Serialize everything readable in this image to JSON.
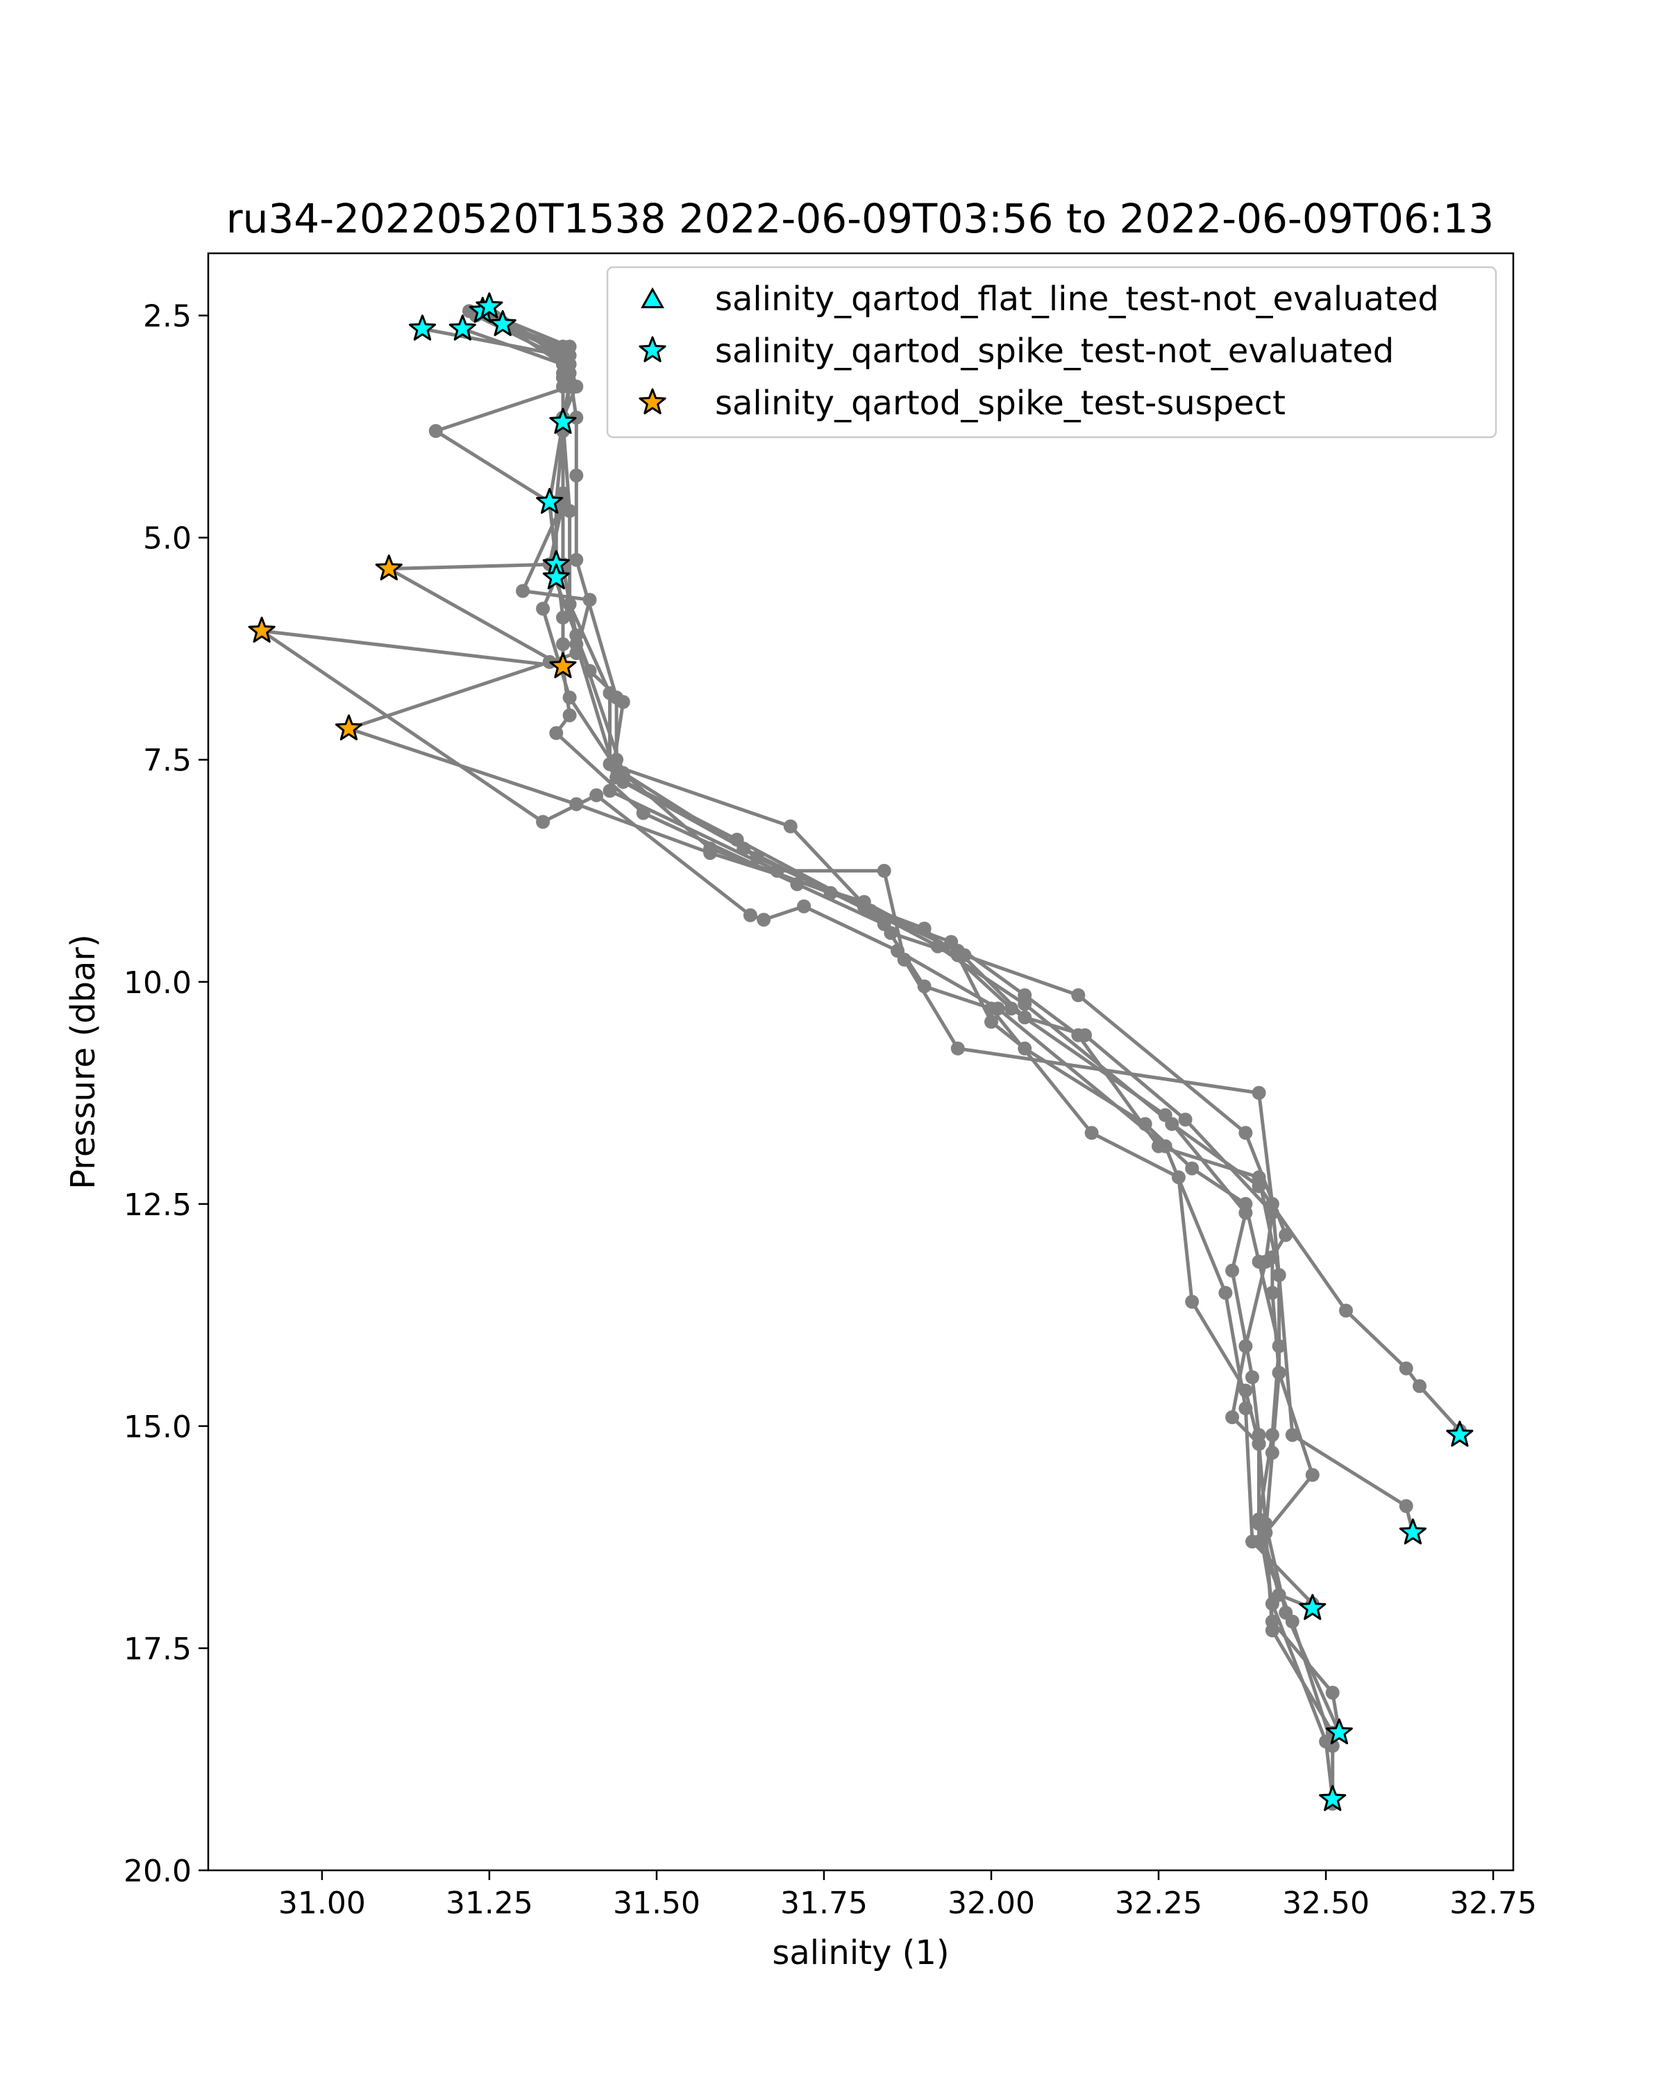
{
  "chart_data": {
    "type": "line",
    "title": "ru34-20220520T1538 2022-06-09T03:56 to 2022-06-09T06:13",
    "xlabel": "salinity (1)",
    "ylabel": "Pressure (dbar)",
    "xlim": [
      30.83,
      32.78
    ],
    "ylim": [
      20.0,
      1.8
    ],
    "y_inverted": true,
    "grid": false,
    "xticks": [
      {
        "v": 31.0,
        "label": "31.00"
      },
      {
        "v": 31.25,
        "label": "31.25"
      },
      {
        "v": 31.5,
        "label": "31.50"
      },
      {
        "v": 31.75,
        "label": "31.75"
      },
      {
        "v": 32.0,
        "label": "32.00"
      },
      {
        "v": 32.25,
        "label": "32.25"
      },
      {
        "v": 32.5,
        "label": "32.50"
      },
      {
        "v": 32.75,
        "label": "32.75"
      }
    ],
    "yticks": [
      {
        "v": 2.5,
        "label": "2.5"
      },
      {
        "v": 5.0,
        "label": "5.0"
      },
      {
        "v": 7.5,
        "label": "7.5"
      },
      {
        "v": 10.0,
        "label": "10.0"
      },
      {
        "v": 12.5,
        "label": "12.5"
      },
      {
        "v": 15.0,
        "label": "15.0"
      },
      {
        "v": 17.5,
        "label": "17.5"
      },
      {
        "v": 20.0,
        "label": "20.0"
      }
    ],
    "line_color": "#808080",
    "profiles": [
      [
        [
          31.24,
          2.45
        ],
        [
          31.37,
          2.85
        ],
        [
          31.37,
          3.15
        ],
        [
          31.38,
          3.65
        ],
        [
          31.38,
          4.3
        ],
        [
          31.38,
          5.25
        ],
        [
          31.44,
          6.8
        ],
        [
          31.44,
          7.5
        ],
        [
          31.45,
          7.75
        ],
        [
          31.63,
          8.5
        ],
        [
          31.83,
          9.25
        ],
        [
          31.94,
          9.55
        ],
        [
          32.05,
          10.15
        ],
        [
          32.13,
          10.6
        ],
        [
          32.25,
          11.85
        ],
        [
          32.4,
          12.2
        ],
        [
          32.43,
          13.3
        ],
        [
          32.43,
          14.4
        ],
        [
          32.42,
          15.3
        ],
        [
          32.41,
          16.2
        ],
        [
          32.42,
          17.2
        ],
        [
          32.51,
          18.0
        ],
        [
          32.52,
          18.45
        ]
      ],
      [
        [
          31.22,
          2.45
        ],
        [
          31.37,
          2.95
        ],
        [
          31.37,
          3.25
        ],
        [
          31.36,
          3.7
        ],
        [
          31.37,
          4.7
        ],
        [
          31.37,
          5.75
        ],
        [
          31.43,
          6.75
        ],
        [
          31.43,
          7.55
        ],
        [
          31.7,
          8.25
        ],
        [
          31.85,
          9.45
        ],
        [
          31.95,
          9.7
        ],
        [
          32.0,
          10.45
        ],
        [
          32.05,
          10.75
        ],
        [
          32.23,
          11.6
        ],
        [
          32.3,
          12.1
        ],
        [
          32.38,
          12.5
        ],
        [
          32.4,
          13.15
        ],
        [
          32.43,
          14.1
        ],
        [
          32.42,
          15.1
        ],
        [
          32.4,
          16.05
        ],
        [
          32.43,
          16.9
        ],
        [
          32.48,
          17.05
        ]
      ],
      [
        [
          31.27,
          2.6
        ],
        [
          31.36,
          2.85
        ],
        [
          31.36,
          3.2
        ],
        [
          31.36,
          3.75
        ],
        [
          31.36,
          4.6
        ],
        [
          31.34,
          5.3
        ],
        [
          31.4,
          6.5
        ],
        [
          31.45,
          6.85
        ],
        [
          31.43,
          7.85
        ],
        [
          31.68,
          8.75
        ],
        [
          31.84,
          8.75
        ],
        [
          31.87,
          9.75
        ],
        [
          31.95,
          10.75
        ],
        [
          32.4,
          11.25
        ],
        [
          32.42,
          12.5
        ],
        [
          32.43,
          13.3
        ],
        [
          32.45,
          15.1
        ],
        [
          32.62,
          15.9
        ],
        [
          32.63,
          16.2
        ]
      ],
      [
        [
          31.15,
          2.65
        ],
        [
          31.36,
          2.95
        ],
        [
          31.36,
          3.15
        ],
        [
          31.36,
          3.7
        ],
        [
          31.34,
          4.6
        ],
        [
          31.35,
          5.3
        ],
        [
          31.36,
          5.9
        ],
        [
          31.36,
          6.2
        ],
        [
          31.36,
          6.45
        ],
        [
          31.37,
          7.0
        ],
        [
          31.35,
          7.2
        ],
        [
          31.48,
          8.1
        ],
        [
          31.71,
          8.9
        ],
        [
          31.84,
          9.35
        ],
        [
          31.9,
          10.05
        ],
        [
          32.0,
          10.3
        ],
        [
          32.15,
          11.7
        ],
        [
          32.28,
          12.2
        ],
        [
          32.3,
          13.6
        ],
        [
          32.38,
          14.6
        ],
        [
          32.4,
          15.2
        ],
        [
          32.4,
          16.1
        ],
        [
          32.42,
          17.0
        ],
        [
          32.5,
          18.55
        ],
        [
          32.51,
          19.2
        ]
      ],
      [
        [
          31.21,
          2.65
        ],
        [
          31.36,
          3.05
        ],
        [
          31.37,
          3.3
        ],
        [
          31.17,
          3.8
        ],
        [
          31.34,
          4.6
        ],
        [
          31.35,
          5.3
        ],
        [
          31.1,
          5.35
        ],
        [
          31.36,
          6.45
        ],
        [
          30.91,
          6.05
        ],
        [
          31.33,
          8.2
        ],
        [
          31.41,
          7.9
        ],
        [
          31.64,
          9.25
        ],
        [
          31.66,
          9.3
        ],
        [
          31.72,
          9.15
        ],
        [
          31.86,
          9.65
        ],
        [
          32.01,
          10.3
        ],
        [
          32.26,
          11.85
        ],
        [
          32.35,
          13.5
        ],
        [
          32.38,
          14.8
        ],
        [
          32.39,
          16.3
        ],
        [
          32.48,
          17.0
        ]
      ],
      [
        [
          31.25,
          2.4
        ],
        [
          31.37,
          3.05
        ],
        [
          31.38,
          3.3
        ],
        [
          31.36,
          3.65
        ],
        [
          31.36,
          4.6
        ],
        [
          31.3,
          5.6
        ],
        [
          31.4,
          5.7
        ],
        [
          31.38,
          6.3
        ],
        [
          31.34,
          6.4
        ],
        [
          31.04,
          7.15
        ],
        [
          31.38,
          8.0
        ],
        [
          31.58,
          8.55
        ],
        [
          31.81,
          9.1
        ],
        [
          31.96,
          9.7
        ],
        [
          32.13,
          10.15
        ],
        [
          32.38,
          11.7
        ],
        [
          32.44,
          12.85
        ],
        [
          32.42,
          13.1
        ],
        [
          32.42,
          13.5
        ],
        [
          32.43,
          14.4
        ],
        [
          32.48,
          15.55
        ],
        [
          32.41,
          16.2
        ],
        [
          32.42,
          17.3
        ],
        [
          32.51,
          18.45
        ]
      ],
      [
        [
          31.23,
          2.5
        ],
        [
          31.35,
          2.95
        ],
        [
          31.37,
          3.3
        ],
        [
          31.36,
          3.8
        ],
        [
          31.35,
          4.6
        ],
        [
          31.35,
          5.45
        ],
        [
          31.33,
          5.8
        ],
        [
          31.37,
          6.8
        ],
        [
          31.44,
          7.6
        ],
        [
          31.65,
          8.6
        ],
        [
          31.81,
          9.15
        ],
        [
          31.95,
          9.65
        ],
        [
          32.05,
          10.4
        ],
        [
          32.14,
          10.6
        ],
        [
          32.29,
          11.55
        ],
        [
          32.42,
          12.6
        ],
        [
          32.41,
          13.15
        ],
        [
          32.38,
          14.1
        ],
        [
          32.36,
          14.9
        ],
        [
          32.4,
          15.2
        ],
        [
          32.41,
          16.1
        ],
        [
          32.44,
          17.1
        ],
        [
          32.52,
          18.45
        ]
      ],
      [
        [
          31.25,
          2.5
        ],
        [
          31.36,
          3.05
        ],
        [
          31.36,
          3.3
        ],
        [
          31.36,
          3.7
        ],
        [
          31.36,
          4.5
        ],
        [
          31.36,
          5.35
        ],
        [
          31.38,
          6.1
        ],
        [
          31.45,
          7.65
        ],
        [
          31.58,
          8.5
        ],
        [
          31.76,
          9.0
        ],
        [
          31.9,
          9.4
        ],
        [
          32.03,
          10.3
        ],
        [
          32.26,
          11.5
        ],
        [
          32.38,
          12.6
        ],
        [
          32.36,
          13.25
        ],
        [
          32.39,
          14.45
        ],
        [
          32.4,
          15.1
        ],
        [
          32.4,
          16.3
        ],
        [
          32.45,
          17.2
        ],
        [
          32.51,
          18.6
        ],
        [
          32.51,
          19.25
        ]
      ],
      [
        [
          31.24,
          2.45
        ],
        [
          31.36,
          2.9
        ],
        [
          31.36,
          3.2
        ],
        [
          31.36,
          3.65
        ],
        [
          31.36,
          4.55
        ],
        [
          31.36,
          5.3
        ],
        [
          31.38,
          6.2
        ],
        [
          31.44,
          7.7
        ],
        [
          31.62,
          8.4
        ],
        [
          31.82,
          9.2
        ],
        [
          31.92,
          9.6
        ],
        [
          32.05,
          10.25
        ],
        [
          32.27,
          11.6
        ],
        [
          32.4,
          12.3
        ],
        [
          32.53,
          13.7
        ],
        [
          32.62,
          14.35
        ],
        [
          32.64,
          14.55
        ],
        [
          32.7,
          15.05
        ]
      ]
    ],
    "series": [
      {
        "name": "salinity_qartod_flat_line_test-not_evaluated",
        "marker": "triangle",
        "color": "#00ffff",
        "points": []
      },
      {
        "name": "salinity_qartod_spike_test-not_evaluated",
        "marker": "star",
        "color": "#00ffff",
        "points": [
          [
            31.24,
            2.45
          ],
          [
            31.25,
            2.4
          ],
          [
            31.27,
            2.6
          ],
          [
            31.15,
            2.65
          ],
          [
            31.21,
            2.65
          ],
          [
            31.36,
            3.7
          ],
          [
            31.34,
            4.6
          ],
          [
            31.35,
            5.3
          ],
          [
            31.35,
            5.45
          ],
          [
            32.7,
            15.1
          ],
          [
            32.63,
            16.2
          ],
          [
            32.48,
            17.05
          ],
          [
            32.52,
            18.45
          ],
          [
            32.51,
            19.2
          ]
        ]
      },
      {
        "name": "salinity_qartod_spike_test-suspect",
        "marker": "star",
        "color": "#ffa500",
        "points": [
          [
            31.1,
            5.35
          ],
          [
            30.91,
            6.05
          ],
          [
            31.36,
            6.45
          ],
          [
            31.04,
            7.15
          ]
        ]
      }
    ],
    "legend": {
      "placement": "top-right"
    }
  }
}
